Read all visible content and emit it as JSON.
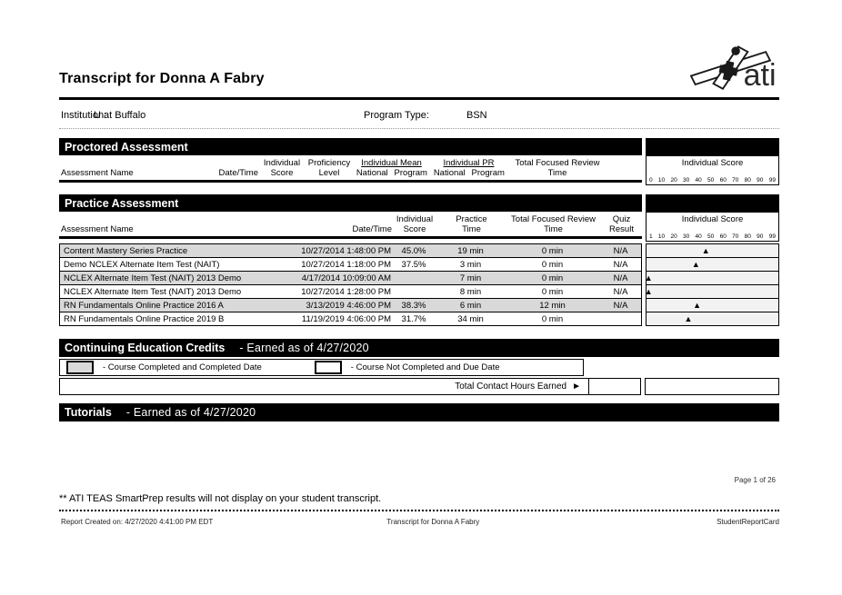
{
  "header": {
    "title": "Transcript for Donna A Fabry",
    "logo_text": "ati",
    "institution_label": "Institution:",
    "institution_value": "U at Buffalo",
    "program_type_label": "Program Type:",
    "program_type_value": "BSN"
  },
  "proctored": {
    "title": "Proctored Assessment",
    "columns": {
      "assessment_name": "Assessment Name",
      "datetime": "Date/Time",
      "individual": "Individual",
      "score": "Score",
      "proficiency": "Proficiency",
      "level": "Level",
      "individual_mean": "Individual Mean",
      "individual_pr": "Individual PR",
      "national": "National",
      "program": "Program",
      "total_focused_review": "Total Focused Review",
      "time": "Time"
    },
    "score_box": {
      "title": "Individual Score",
      "ticks": [
        "0",
        "10",
        "20",
        "30",
        "40",
        "50",
        "60",
        "70",
        "80",
        "90",
        "99"
      ]
    }
  },
  "practice": {
    "title": "Practice Assessment",
    "columns": {
      "assessment_name": "Assessment Name",
      "datetime": "Date/Time",
      "individual": "Individual",
      "score": "Score",
      "practice": "Practice",
      "time": "Time",
      "total_focused_review": "Total Focused Review",
      "time2": "Time",
      "quiz": "Quiz",
      "result": "Result"
    },
    "score_box": {
      "title": "Individual Score",
      "ticks": [
        "1",
        "10",
        "20",
        "30",
        "40",
        "50",
        "60",
        "70",
        "80",
        "90",
        "99"
      ]
    },
    "rows": [
      {
        "name": "Content Mastery Series Practice",
        "datetime": "10/27/2014 1:48:00 PM",
        "score": "45.0%",
        "practice_time": "19 min",
        "focused_time": "0 min",
        "quiz": "N/A",
        "marker": "▲",
        "marker_pct": 45
      },
      {
        "name": "Demo NCLEX Alternate Item Test (NAIT)",
        "datetime": "10/27/2014 1:18:00 PM",
        "score": "37.5%",
        "practice_time": "3 min",
        "focused_time": "0 min",
        "quiz": "N/A",
        "marker": "▲",
        "marker_pct": 37.5
      },
      {
        "name": "NCLEX Alternate Item Test (NAIT) 2013 Demo",
        "datetime": "4/17/2014 10:09:00 AM",
        "score": "",
        "practice_time": "7 min",
        "focused_time": "0 min",
        "quiz": "N/A",
        "marker": "▲",
        "marker_pct": 1.5
      },
      {
        "name": "NCLEX Alternate Item Test (NAIT) 2013 Demo",
        "datetime": "10/27/2014 1:28:00 PM",
        "score": "",
        "practice_time": "8 min",
        "focused_time": "0 min",
        "quiz": "N/A",
        "marker": "▲",
        "marker_pct": 1.5
      },
      {
        "name": "RN Fundamentals Online Practice 2016 A",
        "datetime": "3/13/2019 4:46:00 PM",
        "score": "38.3%",
        "practice_time": "6 min",
        "focused_time": "12 min",
        "quiz": "N/A",
        "marker": "▲",
        "marker_pct": 38.3
      },
      {
        "name": "RN Fundamentals Online Practice 2019 B",
        "datetime": "11/19/2019 4:06:00 PM",
        "score": "31.7%",
        "practice_time": "34 min",
        "focused_time": "0 min",
        "quiz": "",
        "marker": "▲",
        "marker_pct": 31.7
      }
    ]
  },
  "continuing_education": {
    "title": "Continuing Education Credits",
    "subtitle": "- Earned as of 4/27/2020",
    "legend_completed": "- Course Completed and Completed Date",
    "legend_not_completed": "- Course Not Completed and Due Date",
    "total_label": "Total Contact Hours Earned",
    "arrow": "►"
  },
  "tutorials": {
    "title": "Tutorials",
    "subtitle": "- Earned as of 4/27/2020"
  },
  "footer": {
    "page": "Page 1 of 26",
    "note": "** ATI TEAS SmartPrep results will not display on your student transcript.",
    "created": "Report Created on: 4/27/2020 4:41:00 PM EDT",
    "center": "Transcript for Donna A Fabry",
    "right": "StudentReportCard"
  }
}
